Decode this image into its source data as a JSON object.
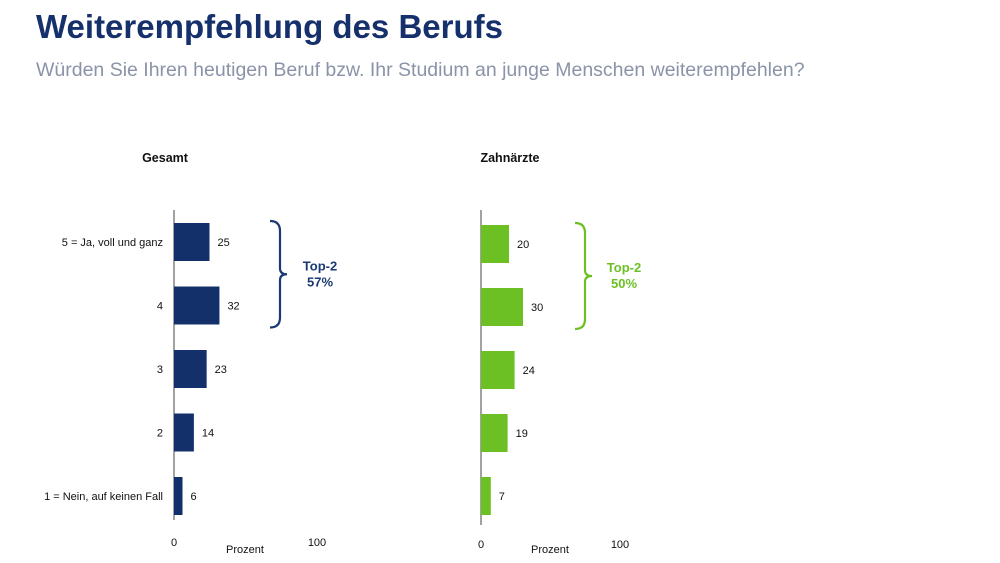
{
  "header": {
    "title": "Weiterempfehlung des Berufs",
    "subtitle": "Würden Sie Ihren heutigen Beruf bzw. Ihr Studium an junge Menschen weiterempfehlen?"
  },
  "chart_data": [
    {
      "type": "bar",
      "orientation": "horizontal",
      "title": "Gesamt",
      "categories": [
        "5 = Ja, voll und ganz",
        "4",
        "3",
        "2",
        "1 = Nein, auf keinen Fall"
      ],
      "values": [
        25,
        32,
        23,
        14,
        6
      ],
      "xlabel": "Prozent",
      "xlim": [
        0,
        100
      ],
      "tick_labels": [
        "0",
        "100"
      ],
      "color": "#13306b",
      "bracket": {
        "line1": "Top-2",
        "line2": "57%",
        "color": "#1b3a73",
        "categories": [
          "5 = Ja, voll und ganz",
          "4"
        ]
      }
    },
    {
      "type": "bar",
      "orientation": "horizontal",
      "title": "Zahnärzte",
      "categories": [
        "5 = Ja, voll und ganz",
        "4",
        "3",
        "2",
        "1 = Nein, auf keinen Fall"
      ],
      "values": [
        20,
        30,
        24,
        19,
        7
      ],
      "xlabel": "Prozent",
      "xlim": [
        0,
        100
      ],
      "tick_labels": [
        "0",
        "100"
      ],
      "color": "#6cc024",
      "bracket": {
        "line1": "Top-2",
        "line2": "50%",
        "color": "#6cc024",
        "categories": [
          "5 = Ja, voll und ganz",
          "4"
        ]
      }
    }
  ]
}
